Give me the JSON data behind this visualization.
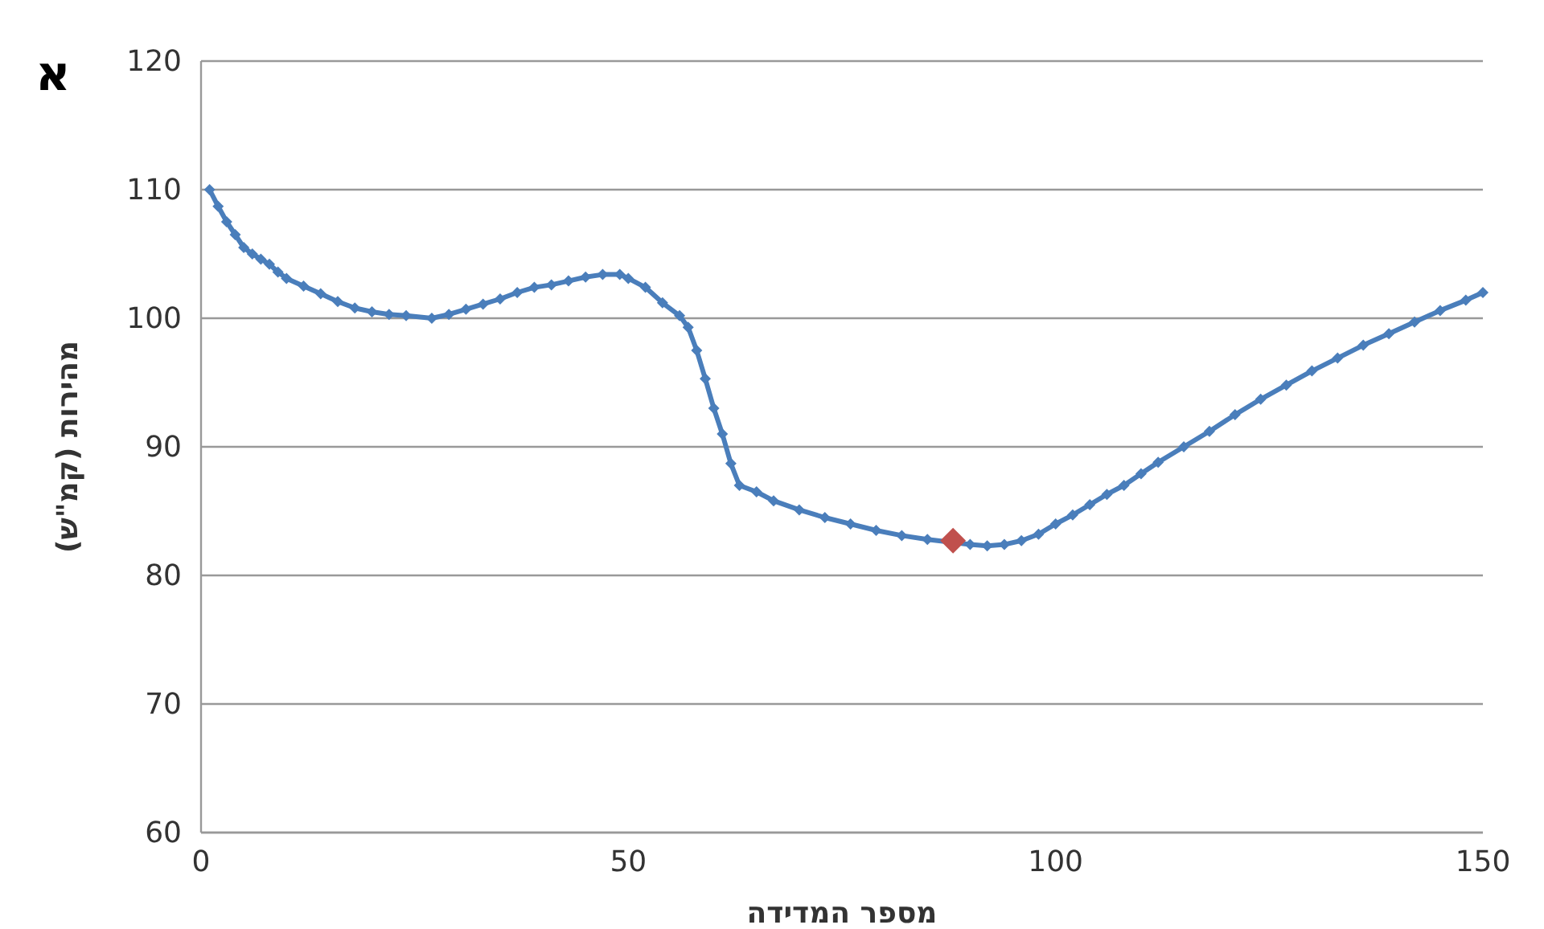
{
  "chart_data": {
    "type": "line",
    "xlabel": "מספר המדידה",
    "ylabel": "מהירות (קמ\"ש)",
    "annotations": [
      "א"
    ],
    "xlim": [
      0,
      150
    ],
    "xticks": [
      0,
      50,
      100,
      150
    ],
    "ylim": [
      60,
      120
    ],
    "yticks": [
      60,
      70,
      80,
      90,
      100,
      110,
      120
    ],
    "grid": "y",
    "marker": "diamond",
    "series": [
      {
        "color": "#4a7ebb",
        "x": [
          1,
          2,
          3,
          4,
          5,
          6,
          7,
          8,
          9,
          10,
          12,
          14,
          16,
          18,
          20,
          22,
          24,
          27,
          29,
          31,
          33,
          35,
          37,
          39,
          41,
          43,
          45,
          47,
          49,
          50,
          52,
          54,
          56,
          57,
          58,
          59,
          60,
          61,
          62,
          63,
          65,
          67,
          70,
          73,
          76,
          79,
          82,
          85,
          90,
          92,
          94,
          96,
          98,
          100,
          102,
          104,
          106,
          108,
          110,
          112,
          115,
          118,
          121,
          124,
          127,
          130,
          133,
          136,
          139,
          142,
          145,
          148,
          150
        ],
        "values": [
          110,
          108.7,
          107.5,
          106.5,
          105.5,
          105,
          104.6,
          104.2,
          103.6,
          103.1,
          102.5,
          101.9,
          101.3,
          100.8,
          100.5,
          100.3,
          100.2,
          100,
          100.3,
          100.7,
          101.1,
          101.5,
          102,
          102.4,
          102.6,
          102.9,
          103.2,
          103.4,
          103.4,
          103.1,
          102.4,
          101.2,
          100.2,
          99.3,
          97.5,
          95.3,
          93,
          91,
          88.7,
          87,
          86.5,
          85.8,
          85.1,
          84.5,
          84,
          83.5,
          83.1,
          82.8,
          82.4,
          82.3,
          82.4,
          82.7,
          83.2,
          84,
          84.7,
          85.5,
          86.3,
          87,
          87.9,
          88.8,
          90,
          91.2,
          92.5,
          93.7,
          94.8,
          95.9,
          96.9,
          97.9,
          98.8,
          99.7,
          100.6,
          101.4,
          102
        ]
      },
      {
        "type": "scatter",
        "color": "#c0504d",
        "x": [
          88
        ],
        "values": [
          82.7
        ]
      }
    ]
  }
}
